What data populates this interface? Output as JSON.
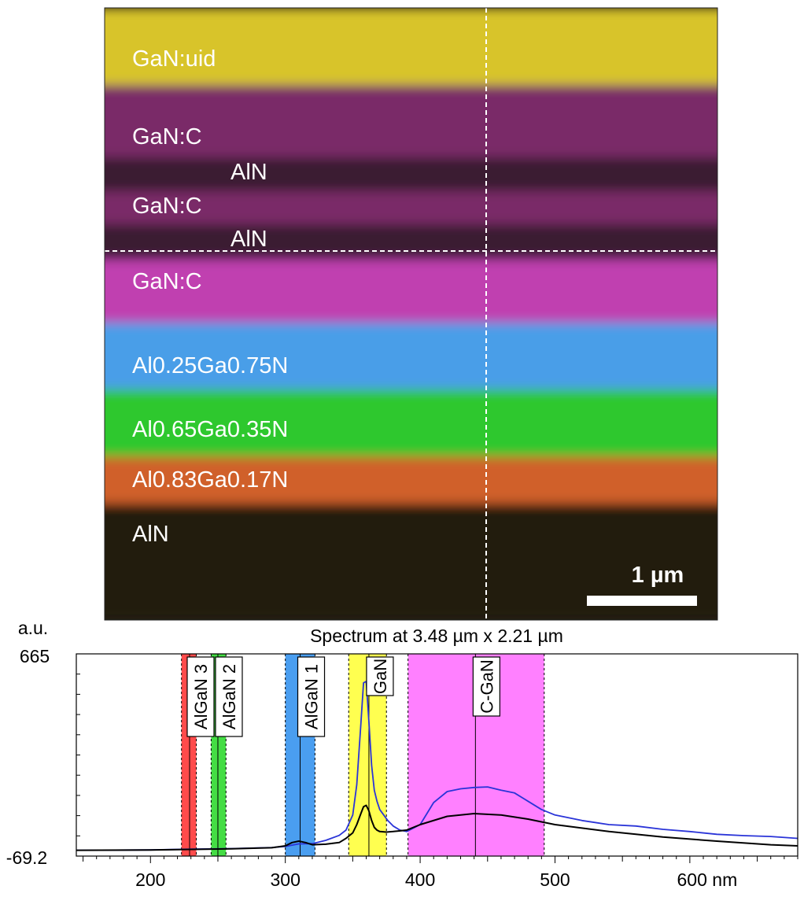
{
  "image_panel": {
    "layers": [
      {
        "label": "GaN:uid",
        "color": "#d8c42a"
      },
      {
        "label": "GaN:C",
        "color": "#7a2a68"
      },
      {
        "label": "AlN",
        "color": "#3a1a30"
      },
      {
        "label": "GaN:C",
        "color": "#7a2a68"
      },
      {
        "label": "AlN",
        "color": "#3a1a30"
      },
      {
        "label": "GaN:C",
        "color": "#c040b0"
      },
      {
        "label": "Al0.25Ga0.75N",
        "color": "#4a9ee8"
      },
      {
        "label": "Al0.65Ga0.35N",
        "color": "#2ec82e"
      },
      {
        "label": "Al0.83Ga0.17N",
        "color": "#d0602a"
      },
      {
        "label": "AlN",
        "color": "#241c10"
      }
    ],
    "scale_bar_label": "1 µm"
  },
  "chart_data": {
    "type": "line",
    "title": "Spectrum at 3.48 µm x 2.21 µm",
    "ylabel": "a.u.",
    "xunit": "nm",
    "xlim": [
      145,
      680
    ],
    "ylim": [
      -69.2,
      665
    ],
    "y_tick_labels": [
      "665",
      "-69.2"
    ],
    "x_ticks": [
      200,
      300,
      400,
      500,
      600
    ],
    "x_tick_labels": [
      "200",
      "300",
      "400",
      "500",
      "600 nm"
    ],
    "bands": [
      {
        "label": "AlGaN 3",
        "range": [
          223,
          234
        ],
        "center": 229,
        "color": "#ff4b4b"
      },
      {
        "label": "AlGaN 2",
        "range": [
          245,
          256
        ],
        "center": 250,
        "color": "#44dd44"
      },
      {
        "label": "AlGaN 1",
        "range": [
          300,
          322
        ],
        "center": 311,
        "color": "#4a9ef0"
      },
      {
        "label": "GaN",
        "range": [
          347,
          375
        ],
        "center": 362,
        "color": "#ffff50"
      },
      {
        "label": "C-GaN",
        "range": [
          391,
          492
        ],
        "center": 441,
        "color": "#ff80ff"
      }
    ],
    "series": [
      {
        "color": "#2a34d8",
        "x": [
          145,
          200,
          230,
          260,
          290,
          300,
          310,
          320,
          330,
          340,
          345,
          350,
          353,
          356,
          358,
          360,
          362,
          364,
          366,
          368,
          370,
          373,
          376,
          380,
          385,
          390,
          400,
          410,
          420,
          430,
          440,
          450,
          460,
          470,
          480,
          490,
          500,
          520,
          540,
          560,
          580,
          600,
          620,
          640,
          660,
          680
        ],
        "y": [
          -48,
          -47,
          -44,
          -42,
          -38,
          -34,
          -25,
          -24,
          -12,
          6,
          25,
          80,
          190,
          410,
          560,
          565,
          420,
          260,
          170,
          130,
          100,
          80,
          60,
          40,
          25,
          20,
          45,
          125,
          165,
          175,
          180,
          182,
          170,
          160,
          130,
          100,
          80,
          60,
          45,
          40,
          28,
          20,
          10,
          5,
          2,
          -5
        ]
      },
      {
        "color": "#000000",
        "x": [
          145,
          200,
          230,
          260,
          290,
          300,
          305,
          310,
          315,
          320,
          330,
          340,
          345,
          350,
          353,
          356,
          358,
          360,
          362,
          364,
          366,
          368,
          370,
          375,
          380,
          390,
          400,
          420,
          440,
          460,
          480,
          500,
          540,
          580,
          620,
          660,
          680
        ],
        "y": [
          -48,
          -47,
          -45,
          -43,
          -39,
          -32,
          -20,
          -15,
          -20,
          -28,
          -26,
          -20,
          -5,
          15,
          45,
          85,
          110,
          115,
          95,
          60,
          35,
          25,
          20,
          18,
          20,
          25,
          45,
          75,
          85,
          80,
          65,
          45,
          20,
          0,
          -15,
          -28,
          -32
        ]
      }
    ]
  }
}
